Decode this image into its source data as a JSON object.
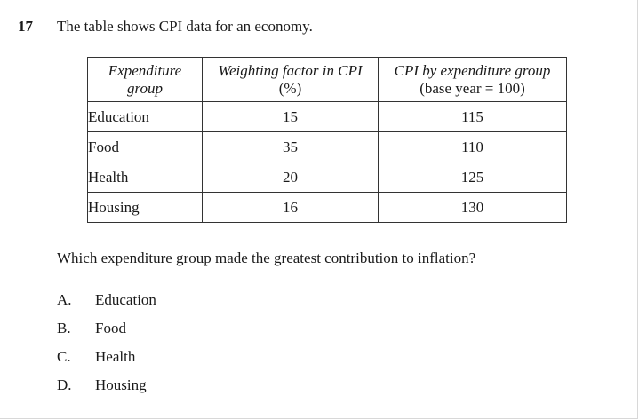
{
  "question": {
    "number": "17",
    "stem": "The table shows CPI data for an economy.",
    "prompt": "Which expenditure group made the greatest contribution to inflation?"
  },
  "table": {
    "headers": [
      {
        "italic": "Expenditure group",
        "plain": ""
      },
      {
        "italic": "Weighting factor in CPI",
        "plain": "(%)"
      },
      {
        "italic": "CPI by expenditure group",
        "plain": "(base year = 100)"
      }
    ],
    "rows": [
      {
        "group": "Education",
        "weight": "15",
        "cpi": "115"
      },
      {
        "group": "Food",
        "weight": "35",
        "cpi": "110"
      },
      {
        "group": "Health",
        "weight": "20",
        "cpi": "125"
      },
      {
        "group": "Housing",
        "weight": "16",
        "cpi": "130"
      }
    ]
  },
  "options": [
    {
      "letter": "A.",
      "text": "Education"
    },
    {
      "letter": "B.",
      "text": "Food"
    },
    {
      "letter": "C.",
      "text": "Health"
    },
    {
      "letter": "D.",
      "text": "Housing"
    }
  ]
}
